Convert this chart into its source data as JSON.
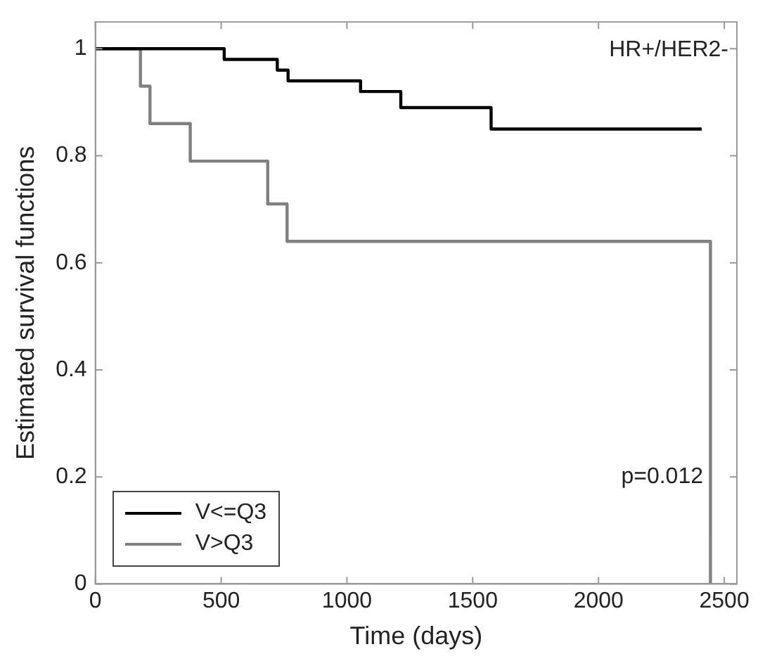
{
  "chart_data": {
    "type": "step",
    "xlabel": "Time (days)",
    "ylabel": "Estimated survival functions",
    "annotations": [
      "HR+/HER2-",
      "p=0.012"
    ],
    "series": [
      {
        "name": "V<=Q3",
        "color": "#000000",
        "x": [
          0,
          512,
          723,
          766,
          1054,
          1214,
          1573,
          2410
        ],
        "values": [
          1,
          0.98,
          0.96,
          0.94,
          0.92,
          0.89,
          0.85,
          0.85
        ]
      },
      {
        "name": "V>Q3",
        "color": "#808080",
        "x": [
          0,
          179,
          217,
          377,
          685,
          762,
          2445,
          2445
        ],
        "values": [
          1,
          0.93,
          0.86,
          0.79,
          0.71,
          0.64,
          0.64,
          0
        ]
      }
    ],
    "xlim": [
      0,
      2550
    ],
    "xticks": [
      0,
      500,
      1000,
      1500,
      2000,
      2500
    ],
    "ylim": [
      0,
      1.05
    ],
    "yticks": [
      0,
      0.2,
      0.4,
      0.6,
      0.8,
      1
    ],
    "grid": false,
    "legend": "bottom left",
    "marker": "none",
    "line_style": "solid"
  }
}
